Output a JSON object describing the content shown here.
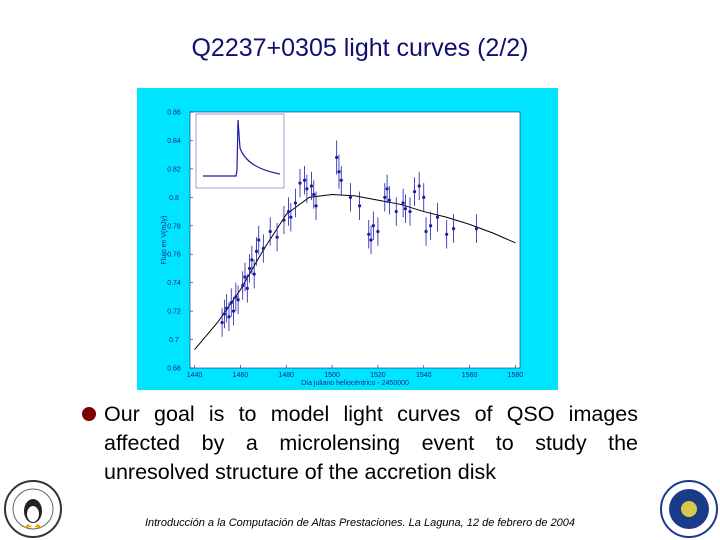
{
  "title": "Q2237+0305 light curves (2/2)",
  "chart_data": {
    "type": "scatter",
    "xlabel": "Día juliano heliocéntrico - 2450000",
    "ylabel": "Flujo en V(mJy)",
    "xlim": [
      1438,
      1582
    ],
    "ylim": [
      0.68,
      0.86
    ],
    "xticks": [
      1440,
      1460,
      1480,
      1500,
      1520,
      1540,
      1560,
      1580
    ],
    "yticks": [
      0.68,
      0.7,
      0.72,
      0.74,
      0.76,
      0.78,
      0.8,
      0.82,
      0.84,
      0.86
    ],
    "background": "#00e5ff",
    "points": {
      "color": "#1a1aa8",
      "x": [
        1452,
        1453,
        1454,
        1455,
        1456,
        1457,
        1458,
        1459,
        1461,
        1462,
        1463,
        1464,
        1465,
        1466,
        1467,
        1468,
        1470,
        1473,
        1476,
        1479,
        1481,
        1482,
        1484,
        1486,
        1488,
        1489,
        1491,
        1492,
        1493,
        1502,
        1503,
        1504,
        1508,
        1512,
        1516,
        1517,
        1518,
        1520,
        1523,
        1524,
        1525,
        1528,
        1531,
        1532,
        1534,
        1536,
        1538,
        1540,
        1541,
        1543,
        1546,
        1550,
        1553,
        1563
      ],
      "values": [
        0.712,
        0.718,
        0.722,
        0.716,
        0.726,
        0.72,
        0.73,
        0.728,
        0.738,
        0.744,
        0.736,
        0.75,
        0.756,
        0.746,
        0.762,
        0.77,
        0.764,
        0.776,
        0.772,
        0.784,
        0.79,
        0.786,
        0.796,
        0.81,
        0.812,
        0.806,
        0.808,
        0.802,
        0.794,
        0.828,
        0.818,
        0.812,
        0.8,
        0.794,
        0.774,
        0.77,
        0.78,
        0.776,
        0.8,
        0.806,
        0.798,
        0.79,
        0.796,
        0.792,
        0.79,
        0.804,
        0.808,
        0.8,
        0.776,
        0.78,
        0.786,
        0.774,
        0.778,
        0.778
      ],
      "errors": [
        0.01,
        0.01,
        0.01,
        0.01,
        0.01,
        0.01,
        0.01,
        0.01,
        0.01,
        0.01,
        0.01,
        0.01,
        0.01,
        0.01,
        0.01,
        0.01,
        0.01,
        0.01,
        0.01,
        0.01,
        0.01,
        0.01,
        0.01,
        0.01,
        0.01,
        0.01,
        0.01,
        0.01,
        0.01,
        0.012,
        0.012,
        0.01,
        0.01,
        0.01,
        0.01,
        0.01,
        0.01,
        0.01,
        0.01,
        0.01,
        0.01,
        0.01,
        0.01,
        0.01,
        0.01,
        0.01,
        0.01,
        0.01,
        0.01,
        0.01,
        0.01,
        0.01,
        0.01,
        0.01
      ]
    },
    "model": {
      "color": "#000000",
      "x": [
        1440,
        1450,
        1460,
        1470,
        1480,
        1490,
        1500,
        1510,
        1520,
        1530,
        1540,
        1550,
        1560,
        1570,
        1580
      ],
      "values": [
        0.693,
        0.712,
        0.735,
        0.763,
        0.788,
        0.8,
        0.802,
        0.801,
        0.798,
        0.795,
        0.79,
        0.786,
        0.781,
        0.775,
        0.768
      ]
    }
  },
  "bullet": "Our goal is to model light curves of QSO images affected by a microlensing event to study the unresolved structure of the accretion disk",
  "footer": "Introducción a la Computación de Altas Prestaciones. La Laguna, 12 de febrero de 2004"
}
